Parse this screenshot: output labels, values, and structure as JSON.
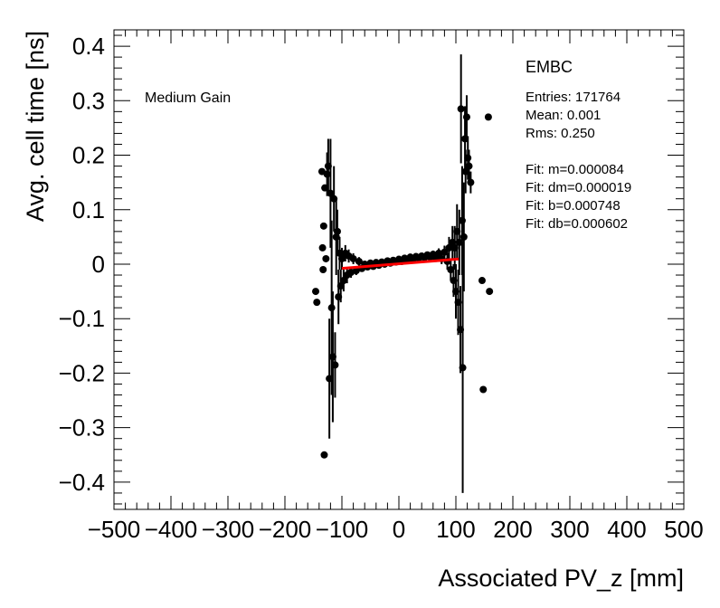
{
  "chart_data": {
    "type": "scatter",
    "title": "",
    "xlabel": "Associated PV_z [mm]",
    "ylabel": "Avg. cell time [ns]",
    "xlim": [
      -500,
      500
    ],
    "ylim": [
      -0.45,
      0.43
    ],
    "x_ticks": [
      -500,
      -400,
      -300,
      -200,
      -100,
      0,
      100,
      200,
      300,
      400,
      500
    ],
    "x_tick_labels": [
      "−500",
      "−400",
      "−300",
      "−200",
      "−100",
      "0",
      "100",
      "200",
      "300",
      "400",
      "500"
    ],
    "y_ticks": [
      -0.4,
      -0.3,
      -0.2,
      -0.1,
      0,
      0.1,
      0.2,
      0.3,
      0.4
    ],
    "y_tick_labels": [
      "−0.4",
      "−0.3",
      "−0.2",
      "−0.1",
      "0",
      "0.1",
      "0.2",
      "0.3",
      "0.4"
    ],
    "grid": false,
    "annotation": "Medium Gain",
    "stats_box": {
      "title": "EMBC",
      "lines": [
        "Entries: 171764",
        "Mean: 0.001",
        "Rms: 0.250",
        "",
        "Fit: m=0.000084",
        "Fit: dm=0.000019",
        "Fit: b=0.000748",
        "Fit: db=0.000602"
      ]
    },
    "fit_line": {
      "x": [
        -100,
        105
      ],
      "y": [
        -0.0077,
        0.0096
      ],
      "color": "#ff0000"
    },
    "marker_color": "#000000",
    "points": [
      {
        "x": -146,
        "y": -0.05,
        "err": 0
      },
      {
        "x": -144,
        "y": -0.07,
        "err": 0
      },
      {
        "x": -135,
        "y": 0.17,
        "err": 0
      },
      {
        "x": -134,
        "y": 0.03,
        "err": 0
      },
      {
        "x": -133,
        "y": -0.01,
        "err": 0
      },
      {
        "x": -132,
        "y": 0.07,
        "err": 0
      },
      {
        "x": -131,
        "y": -0.35,
        "err": 0
      },
      {
        "x": -130,
        "y": 0.14,
        "err": 0
      },
      {
        "x": -128,
        "y": 0.01,
        "err": 0
      },
      {
        "x": -126,
        "y": 0.165,
        "err": 0.04
      },
      {
        "x": -124,
        "y": 0.18,
        "err": 0.05
      },
      {
        "x": -122,
        "y": -0.21,
        "err": 0.11
      },
      {
        "x": -120,
        "y": 0.13,
        "err": 0.1
      },
      {
        "x": -118,
        "y": -0.08,
        "err": 0.16
      },
      {
        "x": -116,
        "y": -0.17,
        "err": 0.12
      },
      {
        "x": -114,
        "y": 0.12,
        "err": 0.06
      },
      {
        "x": -112,
        "y": -0.185,
        "err": 0.06
      },
      {
        "x": -110,
        "y": 0.05,
        "err": 0.07
      },
      {
        "x": -108,
        "y": 0.06,
        "err": 0.04
      },
      {
        "x": -106,
        "y": -0.06,
        "err": 0.05
      },
      {
        "x": -104,
        "y": 0.02,
        "err": 0.03
      },
      {
        "x": -102,
        "y": -0.04,
        "err": 0.03
      },
      {
        "x": -100,
        "y": 0.01,
        "err": 0.02
      },
      {
        "x": -97,
        "y": -0.03,
        "err": 0.02
      },
      {
        "x": -94,
        "y": 0.02,
        "err": 0.015
      },
      {
        "x": -91,
        "y": -0.02,
        "err": 0.015
      },
      {
        "x": -88,
        "y": 0.015,
        "err": 0.012
      },
      {
        "x": -84,
        "y": -0.015,
        "err": 0.01
      },
      {
        "x": -80,
        "y": 0.01,
        "err": 0.01
      },
      {
        "x": -75,
        "y": -0.012,
        "err": 0.008
      },
      {
        "x": -70,
        "y": 0.005,
        "err": 0.008
      },
      {
        "x": -65,
        "y": -0.008,
        "err": 0.006
      },
      {
        "x": -60,
        "y": 0.0,
        "err": 0.006
      },
      {
        "x": -55,
        "y": -0.005,
        "err": 0.005
      },
      {
        "x": -50,
        "y": 0.002,
        "err": 0.005
      },
      {
        "x": -45,
        "y": -0.004,
        "err": 0.005
      },
      {
        "x": -40,
        "y": 0.003,
        "err": 0.004
      },
      {
        "x": -35,
        "y": -0.002,
        "err": 0.004
      },
      {
        "x": -30,
        "y": 0.004,
        "err": 0.004
      },
      {
        "x": -25,
        "y": 0.0,
        "err": 0.004
      },
      {
        "x": -20,
        "y": 0.006,
        "err": 0.004
      },
      {
        "x": -15,
        "y": 0.002,
        "err": 0.004
      },
      {
        "x": -10,
        "y": 0.007,
        "err": 0.004
      },
      {
        "x": -5,
        "y": 0.004,
        "err": 0.004
      },
      {
        "x": 0,
        "y": 0.009,
        "err": 0.004
      },
      {
        "x": 5,
        "y": 0.005,
        "err": 0.004
      },
      {
        "x": 10,
        "y": 0.011,
        "err": 0.004
      },
      {
        "x": 15,
        "y": 0.007,
        "err": 0.004
      },
      {
        "x": 20,
        "y": 0.013,
        "err": 0.004
      },
      {
        "x": 25,
        "y": 0.009,
        "err": 0.004
      },
      {
        "x": 30,
        "y": 0.014,
        "err": 0.005
      },
      {
        "x": 35,
        "y": 0.011,
        "err": 0.005
      },
      {
        "x": 40,
        "y": 0.015,
        "err": 0.005
      },
      {
        "x": 45,
        "y": 0.012,
        "err": 0.005
      },
      {
        "x": 50,
        "y": 0.017,
        "err": 0.006
      },
      {
        "x": 55,
        "y": 0.013,
        "err": 0.006
      },
      {
        "x": 60,
        "y": 0.018,
        "err": 0.007
      },
      {
        "x": 65,
        "y": 0.012,
        "err": 0.008
      },
      {
        "x": 70,
        "y": 0.02,
        "err": 0.009
      },
      {
        "x": 75,
        "y": 0.01,
        "err": 0.01
      },
      {
        "x": 80,
        "y": 0.022,
        "err": 0.012
      },
      {
        "x": 85,
        "y": 0.005,
        "err": 0.015
      },
      {
        "x": 88,
        "y": 0.03,
        "err": 0.02
      },
      {
        "x": 91,
        "y": -0.01,
        "err": 0.02
      },
      {
        "x": 94,
        "y": 0.04,
        "err": 0.03
      },
      {
        "x": 96,
        "y": -0.03,
        "err": 0.03
      },
      {
        "x": 98,
        "y": 0.03,
        "err": 0.04
      },
      {
        "x": 100,
        "y": -0.05,
        "err": 0.05
      },
      {
        "x": 102,
        "y": 0.06,
        "err": 0.05
      },
      {
        "x": 104,
        "y": -0.07,
        "err": 0.06
      },
      {
        "x": 106,
        "y": 0.04,
        "err": 0.06
      },
      {
        "x": 108,
        "y": -0.12,
        "err": 0.08
      },
      {
        "x": 109,
        "y": 0.285,
        "err": 0.1
      },
      {
        "x": 111,
        "y": 0.08,
        "err": 0.1
      },
      {
        "x": 112,
        "y": -0.19,
        "err": 0.23
      },
      {
        "x": 114,
        "y": 0.05,
        "err": 0.1
      },
      {
        "x": 116,
        "y": 0.23,
        "err": 0.06
      },
      {
        "x": 117,
        "y": 0.17,
        "err": 0.04
      },
      {
        "x": 119,
        "y": 0.27,
        "err": 0.04
      },
      {
        "x": 121,
        "y": 0.195,
        "err": 0.04
      },
      {
        "x": 123,
        "y": 0.18,
        "err": 0.03
      },
      {
        "x": 126,
        "y": 0.15,
        "err": 0.02
      },
      {
        "x": 146,
        "y": -0.03,
        "err": 0
      },
      {
        "x": 148,
        "y": -0.23,
        "err": 0
      },
      {
        "x": 157,
        "y": 0.27,
        "err": 0
      },
      {
        "x": 159,
        "y": -0.05,
        "err": 0
      }
    ]
  }
}
